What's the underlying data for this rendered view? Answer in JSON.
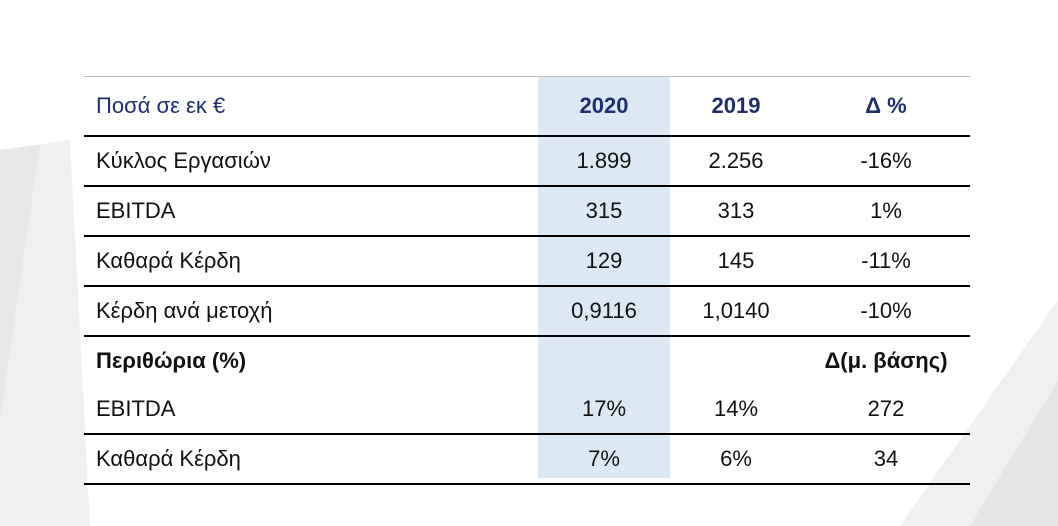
{
  "header": {
    "label": "Ποσά σε εκ €",
    "col_2020": "2020",
    "col_2019": "2019",
    "col_delta": "Δ %"
  },
  "rows": [
    {
      "label": "Κύκλος Εργασιών",
      "v2020": "1.899",
      "v2019": "2.256",
      "delta": "-16%"
    },
    {
      "label": "EBITDA",
      "v2020": "315",
      "v2019": "313",
      "delta": "1%"
    },
    {
      "label": "Καθαρά Κέρδη",
      "v2020": "129",
      "v2019": "145",
      "delta": "-11%"
    },
    {
      "label": "Κέρδη ανά μετοχή",
      "v2020": "0,9116",
      "v2019": "1,0140",
      "delta": "-10%"
    }
  ],
  "margins_section": {
    "label": "Περιθώρια (%)",
    "delta_header": "Δ(μ. βάσης)"
  },
  "margin_rows": [
    {
      "label": "EBITDA",
      "v2020": "17%",
      "v2019": "14%",
      "delta": "272"
    },
    {
      "label": "Καθαρά Κέρδη",
      "v2020": "7%",
      "v2019": "6%",
      "delta": "34"
    }
  ],
  "colors": {
    "header_text": "#1f2f6e",
    "highlight_column": "#dce9f5"
  }
}
